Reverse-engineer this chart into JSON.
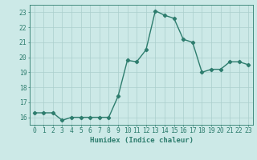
{
  "x": [
    0,
    1,
    2,
    3,
    4,
    5,
    6,
    7,
    8,
    9,
    10,
    11,
    12,
    13,
    14,
    15,
    16,
    17,
    18,
    19,
    20,
    21,
    22,
    23
  ],
  "y": [
    16.3,
    16.3,
    16.3,
    15.8,
    16.0,
    16.0,
    16.0,
    16.0,
    16.0,
    17.4,
    19.8,
    19.7,
    20.5,
    23.1,
    22.8,
    22.6,
    21.2,
    21.0,
    19.0,
    19.2,
    19.2,
    19.7,
    19.7,
    19.5
  ],
  "line_color": "#2e7d6e",
  "marker": "D",
  "markersize": 2.2,
  "linewidth": 1.0,
  "bg_color": "#cce9e7",
  "grid_color": "#aacfcc",
  "xlabel": "Humidex (Indice chaleur)",
  "ylim": [
    15.5,
    23.5
  ],
  "yticks": [
    16,
    17,
    18,
    19,
    20,
    21,
    22,
    23
  ],
  "xticks": [
    0,
    1,
    2,
    3,
    4,
    5,
    6,
    7,
    8,
    9,
    10,
    11,
    12,
    13,
    14,
    15,
    16,
    17,
    18,
    19,
    20,
    21,
    22,
    23
  ],
  "tick_color": "#2e7d6e",
  "label_fontsize": 6.5,
  "tick_fontsize": 5.8,
  "spine_color": "#2e7d6e"
}
